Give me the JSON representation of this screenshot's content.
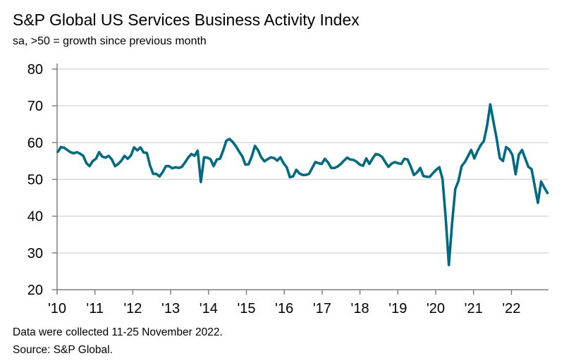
{
  "chart_data": {
    "type": "line",
    "title": "S&P Global US Services Business Activity Index",
    "subtitle": "sa, >50 = growth since previous month",
    "xlabel": "",
    "ylabel": "",
    "ylim": [
      20,
      80
    ],
    "yticks": [
      "20",
      "30",
      "40",
      "50",
      "60",
      "70",
      "80"
    ],
    "xticks": [
      "'10",
      "'11",
      "'12",
      "'13",
      "'14",
      "'15",
      "'16",
      "'17",
      "'18",
      "'19",
      "'20",
      "'21",
      "'22"
    ],
    "x_start": "2010-01",
    "x_end": "2022-11",
    "frequency": "monthly",
    "grid": true,
    "line_color": "#006a80",
    "series": [
      {
        "values": [
          57.5,
          58.8,
          58.6,
          58.0,
          57.4,
          57.1,
          57.4,
          57.0,
          56.4,
          54.4,
          53.6,
          55.0,
          55.6,
          57.4,
          56.2,
          55.9,
          56.4,
          55.4,
          53.6,
          54.2,
          55.1,
          56.4,
          55.6,
          56.5,
          58.7,
          57.9,
          58.7,
          57.3,
          57.2,
          53.8,
          51.5,
          51.5,
          50.8,
          52.0,
          53.6,
          53.6,
          53.0,
          53.3,
          53.1,
          53.4,
          54.6,
          55.9,
          56.9,
          56.4,
          57.8,
          49.3,
          56.0,
          55.9,
          55.5,
          53.6,
          55.4,
          55.6,
          57.8,
          60.5,
          61.0,
          60.2,
          59.0,
          57.6,
          56.3,
          54.0,
          54.1,
          56.2,
          59.1,
          57.9,
          56.0,
          54.9,
          55.5,
          56.0,
          55.8,
          55.1,
          56.0,
          54.4,
          53.3,
          50.6,
          50.8,
          52.6,
          51.6,
          51.2,
          51.2,
          51.5,
          53.1,
          54.7,
          54.4,
          54.2,
          55.6,
          54.6,
          53.1,
          53.1,
          53.5,
          54.2,
          55.1,
          55.9,
          55.4,
          55.3,
          54.8,
          54.0,
          53.7,
          55.7,
          54.2,
          55.7,
          56.9,
          56.7,
          56.1,
          54.7,
          53.4,
          54.3,
          54.7,
          54.4,
          54.2,
          55.6,
          55.4,
          53.5,
          51.2,
          51.9,
          53.1,
          50.9,
          50.7,
          50.7,
          51.7,
          52.6,
          53.3,
          50.1,
          39.5,
          26.7,
          37.9,
          47.4,
          49.6,
          53.6,
          54.7,
          56.3,
          58.0,
          55.7,
          57.7,
          59.3,
          60.4,
          64.6,
          70.4,
          65.7,
          61.2,
          55.8,
          55.0,
          58.8,
          58.1,
          56.6,
          51.4,
          56.7,
          58.0,
          55.7,
          53.4,
          52.8,
          48.2,
          43.6,
          49.4,
          47.8,
          46.3
        ]
      }
    ],
    "notes": [
      "Data were collected 11-25 November 2022.",
      "Source: S&P Global."
    ]
  }
}
